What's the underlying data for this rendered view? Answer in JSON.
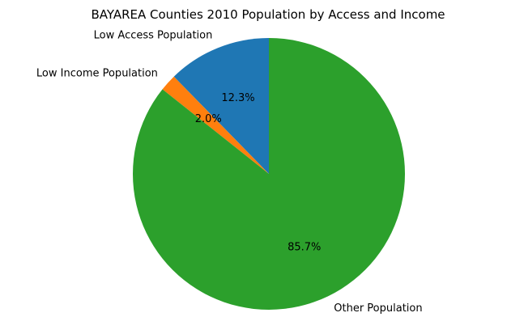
{
  "chart_data": {
    "type": "pie",
    "title": "BAYAREA Counties 2010 Population by Access and Income",
    "categories": [
      "Low Access Population",
      "Low Income Population",
      "Other Population"
    ],
    "values": [
      12.3,
      2.0,
      85.7
    ],
    "percent_labels": [
      "12.3%",
      "2.0%",
      "85.7%"
    ],
    "colors": [
      "#1f77b4",
      "#ff7f0e",
      "#2ca02c"
    ],
    "start_angle_deg": 90,
    "direction": "counterclockwise",
    "legend": "none"
  }
}
